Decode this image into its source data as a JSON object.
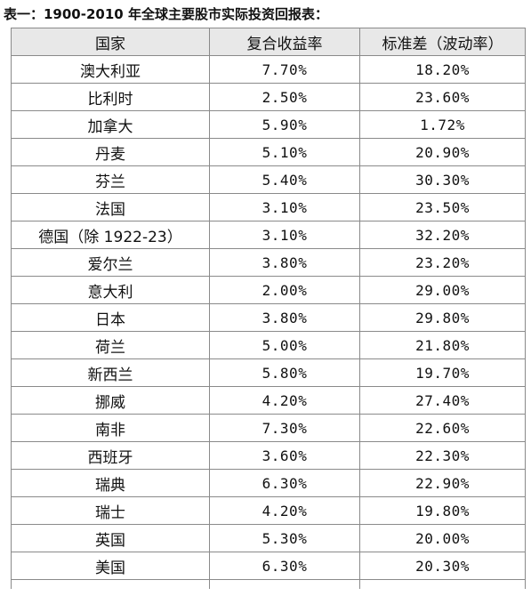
{
  "caption": "表一：1900-2010 年全球主要股市实际投资回报表：",
  "table": {
    "headers": [
      "国家",
      "复合收益率",
      "标准差（波动率）"
    ],
    "rows": [
      {
        "country": "澳大利亚",
        "return": "7.70%",
        "std": "18.20%"
      },
      {
        "country": "比利时",
        "return": "2.50%",
        "std": "23.60%"
      },
      {
        "country": "加拿大",
        "return": "5.90%",
        "std": "1.72%"
      },
      {
        "country": "丹麦",
        "return": "5.10%",
        "std": "20.90%"
      },
      {
        "country": "芬兰",
        "return": "5.40%",
        "std": "30.30%"
      },
      {
        "country": "法国",
        "return": "3.10%",
        "std": "23.50%"
      },
      {
        "country": "德国（除 1922-23）",
        "return": "3.10%",
        "std": "32.20%"
      },
      {
        "country": "爱尔兰",
        "return": "3.80%",
        "std": "23.20%"
      },
      {
        "country": "意大利",
        "return": "2.00%",
        "std": "29.00%"
      },
      {
        "country": "日本",
        "return": "3.80%",
        "std": "29.80%"
      },
      {
        "country": "荷兰",
        "return": "5.00%",
        "std": "21.80%"
      },
      {
        "country": "新西兰",
        "return": "5.80%",
        "std": "19.70%"
      },
      {
        "country": "挪威",
        "return": "4.20%",
        "std": "27.40%"
      },
      {
        "country": "南非",
        "return": "7.30%",
        "std": "22.60%"
      },
      {
        "country": "西班牙",
        "return": "3.60%",
        "std": "22.30%"
      },
      {
        "country": "瑞典",
        "return": "6.30%",
        "std": "22.90%"
      },
      {
        "country": "瑞士",
        "return": "4.20%",
        "std": "19.80%"
      },
      {
        "country": "英国",
        "return": "5.30%",
        "std": "20.00%"
      },
      {
        "country": "美国",
        "return": "6.30%",
        "std": "20.30%"
      }
    ]
  }
}
